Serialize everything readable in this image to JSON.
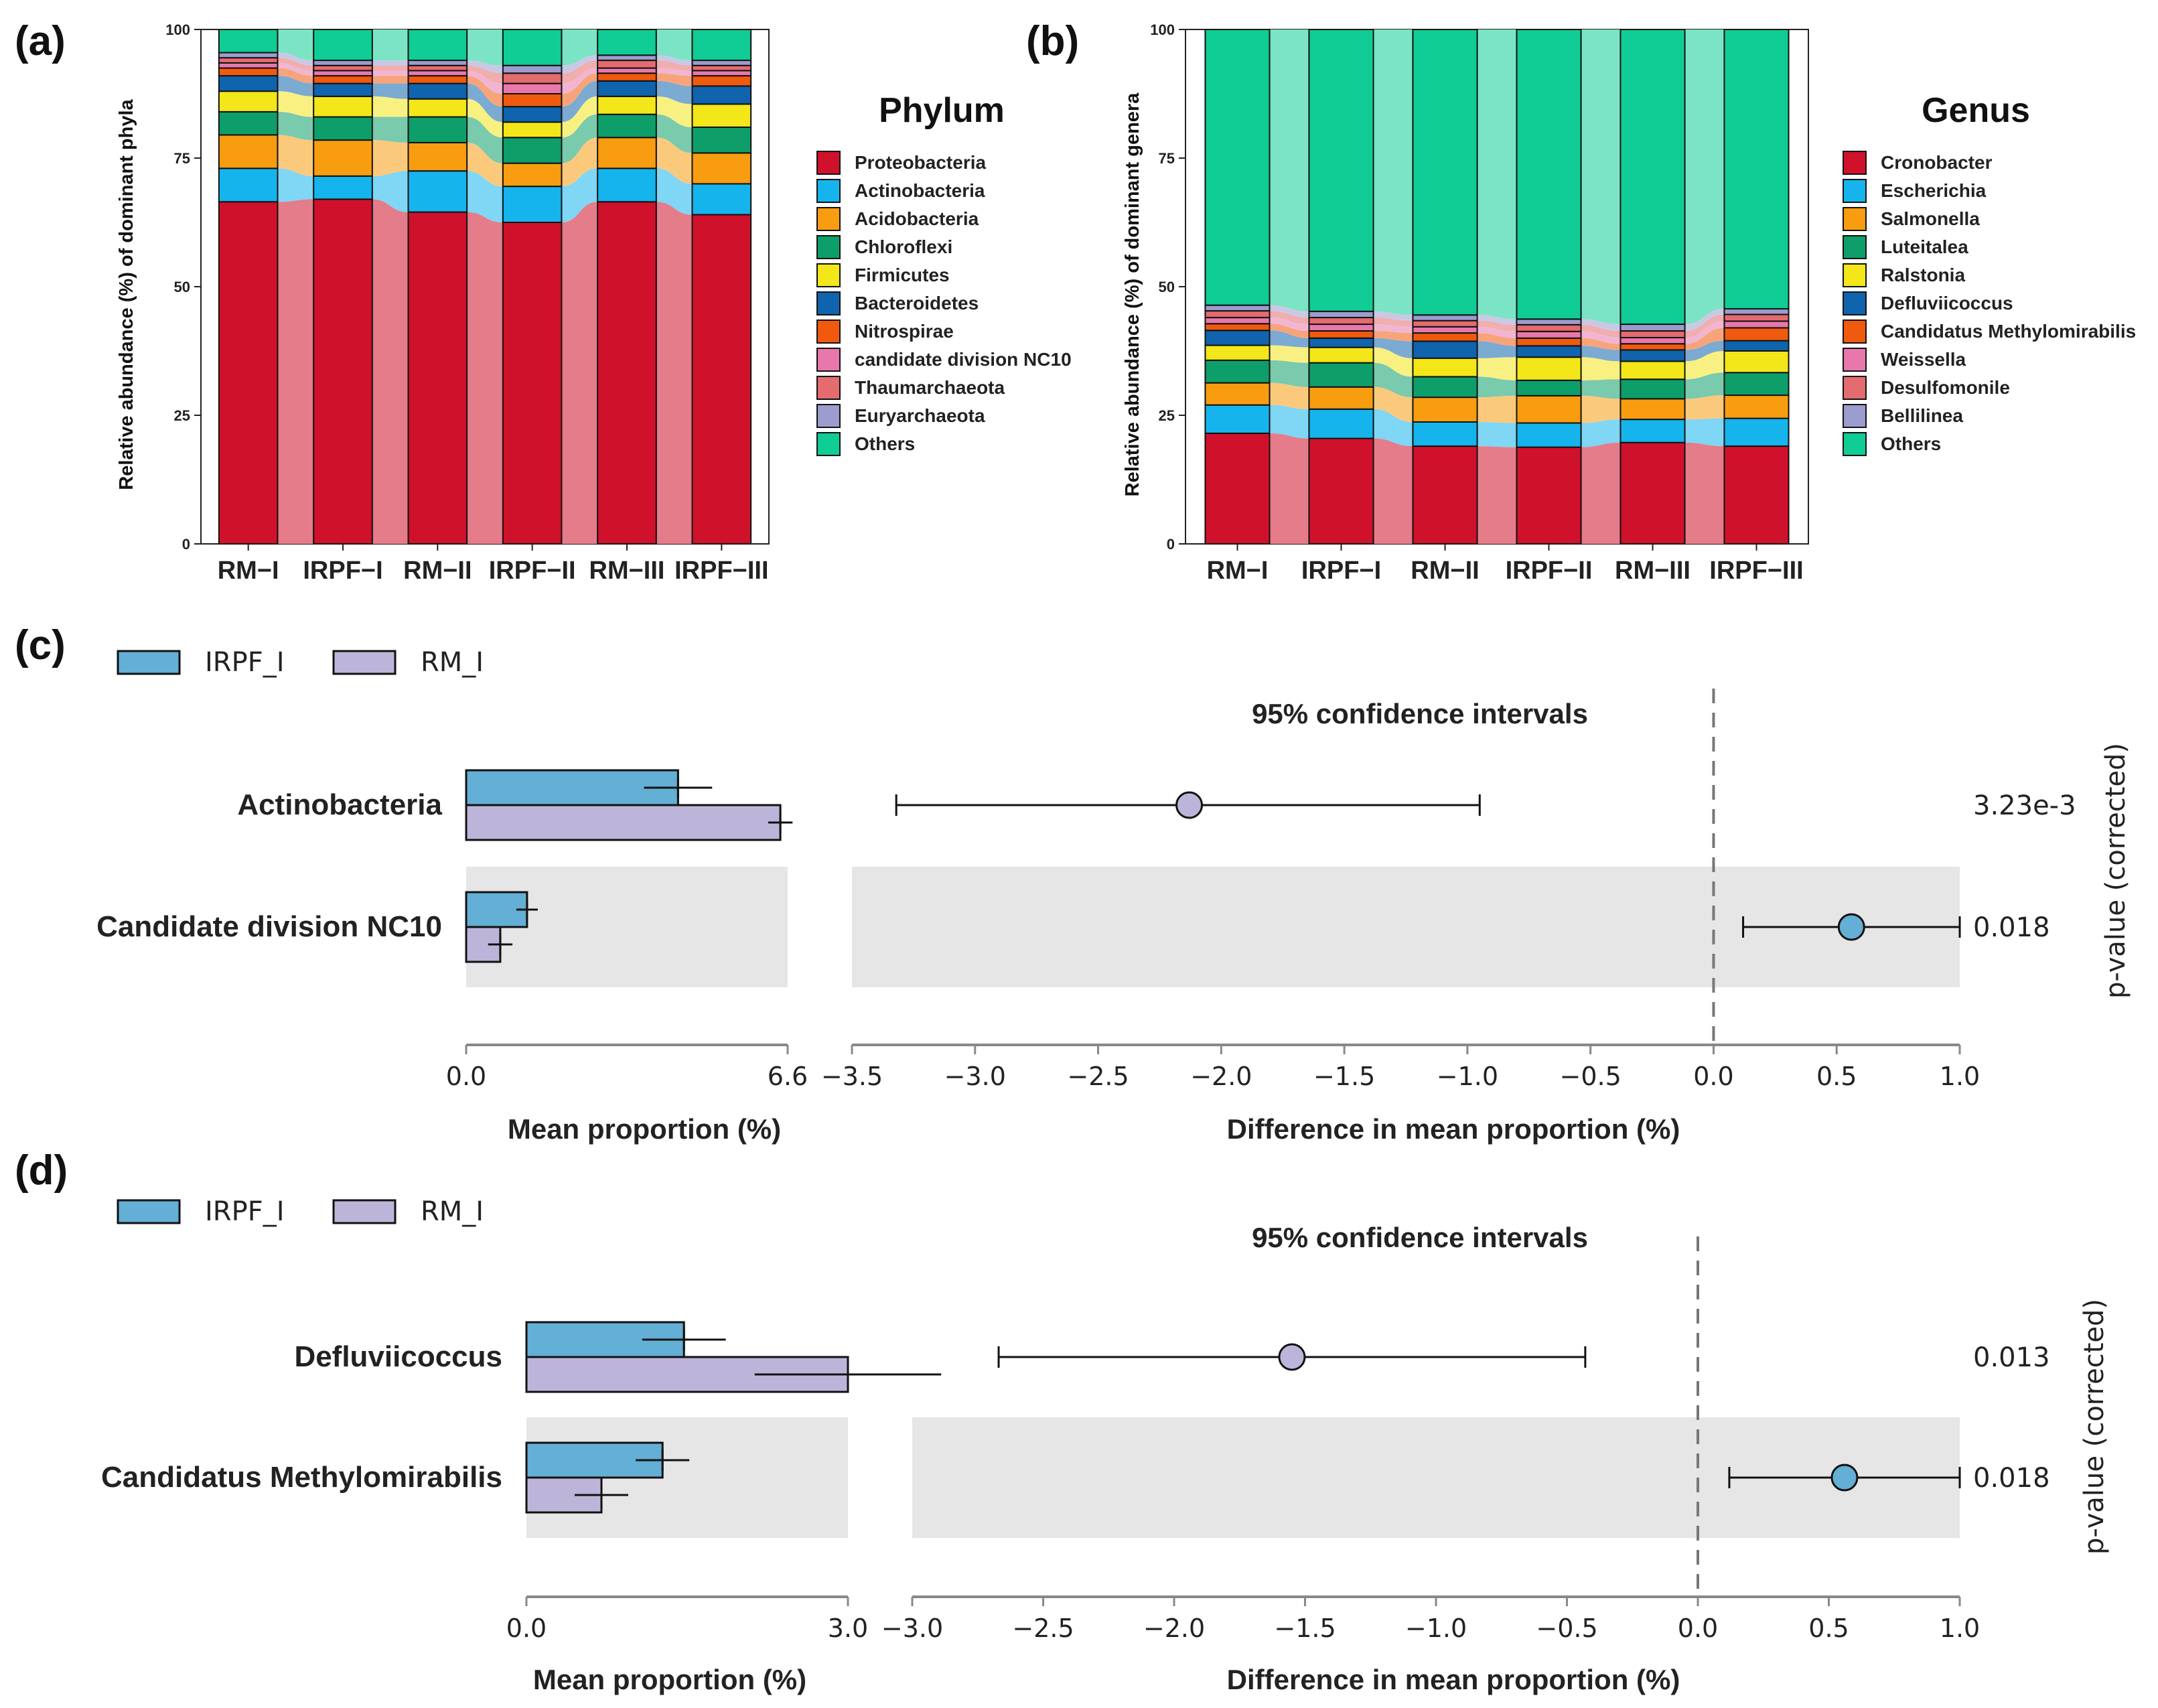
{
  "chart_data": [
    {
      "id": "a",
      "panel_label": "(a)",
      "type": "bar",
      "stacked": true,
      "title": "",
      "xlabel": "",
      "ylabel": "Relative abundance (%) of dominant phyla",
      "ylim": [
        0,
        100
      ],
      "yticks": [
        "0",
        "25",
        "50",
        "75",
        "100"
      ],
      "categories": [
        "RM−I",
        "IRPF−I",
        "RM−II",
        "IRPF−II",
        "RM−III",
        "IRPF−III"
      ],
      "legend_title": "Phylum",
      "legend_position": "right",
      "series": [
        {
          "name": "Proteobacteria",
          "color": "#d0112b",
          "values": [
            66.5,
            67.0,
            64.5,
            62.5,
            66.5,
            64.0
          ]
        },
        {
          "name": "Actinobacteria",
          "color": "#16b4ec",
          "values": [
            6.5,
            4.5,
            8.0,
            7.0,
            6.5,
            6.0
          ]
        },
        {
          "name": "Acidobacteria",
          "color": "#f89c10",
          "values": [
            6.5,
            7.0,
            5.5,
            4.5,
            6.0,
            6.0
          ]
        },
        {
          "name": "Chloroflexi",
          "color": "#0e9e6a",
          "values": [
            4.5,
            4.5,
            5.0,
            5.0,
            4.5,
            5.0
          ]
        },
        {
          "name": "Firmicutes",
          "color": "#f3e619",
          "values": [
            4.0,
            4.0,
            3.5,
            3.0,
            3.5,
            4.5
          ]
        },
        {
          "name": "Bacteroidetes",
          "color": "#0f64ad",
          "values": [
            3.0,
            2.5,
            3.0,
            3.0,
            3.0,
            3.5
          ]
        },
        {
          "name": "Nitrospirae",
          "color": "#f05a0f",
          "values": [
            1.5,
            1.5,
            1.5,
            2.5,
            1.5,
            2.0
          ]
        },
        {
          "name": "candidate division NC10",
          "color": "#e878ab",
          "values": [
            1.0,
            1.0,
            1.0,
            2.0,
            1.0,
            1.0
          ]
        },
        {
          "name": "Thaumarchaeota",
          "color": "#e46b6e",
          "values": [
            1.0,
            1.0,
            1.0,
            2.0,
            1.5,
            1.0
          ]
        },
        {
          "name": "Euryarchaeota",
          "color": "#9c9ccf",
          "values": [
            1.0,
            1.0,
            1.0,
            1.5,
            1.0,
            1.0
          ]
        },
        {
          "name": "Others",
          "color": "#0fcd94",
          "values": [
            4.5,
            6.0,
            6.0,
            7.0,
            5.0,
            6.0
          ]
        }
      ]
    },
    {
      "id": "b",
      "panel_label": "(b)",
      "type": "bar",
      "stacked": true,
      "title": "",
      "xlabel": "",
      "ylabel": "Relative abundance (%) of dominant genera",
      "ylim": [
        0,
        100
      ],
      "yticks": [
        "0",
        "25",
        "50",
        "75",
        "100"
      ],
      "categories": [
        "RM−I",
        "IRPF−I",
        "RM−II",
        "IRPF−II",
        "RM−III",
        "IRPF−III"
      ],
      "legend_title": "Genus",
      "legend_position": "right",
      "series": [
        {
          "name": "Cronobacter",
          "color": "#d0112b",
          "values": [
            21.5,
            20.5,
            19.0,
            18.8,
            19.7,
            19.0
          ]
        },
        {
          "name": "Escherichia",
          "color": "#16b4ec",
          "values": [
            5.5,
            5.7,
            4.7,
            4.7,
            4.5,
            5.4
          ]
        },
        {
          "name": "Salmonella",
          "color": "#f89c10",
          "values": [
            4.3,
            4.3,
            4.8,
            5.3,
            4.0,
            4.5
          ]
        },
        {
          "name": "Luteitalea",
          "color": "#0e9e6a",
          "values": [
            4.4,
            4.7,
            4.0,
            3.0,
            3.8,
            4.4
          ]
        },
        {
          "name": "Ralstonia",
          "color": "#f3e619",
          "values": [
            2.9,
            3.0,
            3.6,
            4.5,
            3.5,
            4.2
          ]
        },
        {
          "name": "Defluviicoccus",
          "color": "#0f64ad",
          "values": [
            2.9,
            1.8,
            3.3,
            2.2,
            2.2,
            2.0
          ]
        },
        {
          "name": "Candidatus Methylomirabilis",
          "color": "#f05a0f",
          "values": [
            1.3,
            1.4,
            1.6,
            1.5,
            1.2,
            2.5
          ]
        },
        {
          "name": "Weissella",
          "color": "#e878ab",
          "values": [
            1.2,
            1.3,
            1.2,
            1.3,
            1.2,
            1.3
          ]
        },
        {
          "name": "Desulfomonile",
          "color": "#e46b6e",
          "values": [
            1.3,
            1.3,
            1.2,
            1.3,
            1.3,
            1.3
          ]
        },
        {
          "name": "Bellilinea",
          "color": "#9c9ccf",
          "values": [
            1.1,
            1.2,
            1.1,
            1.1,
            1.3,
            1.1
          ]
        },
        {
          "name": "Others",
          "color": "#0fcd94",
          "values": [
            53.6,
            54.8,
            55.5,
            56.3,
            57.3,
            54.3
          ]
        }
      ]
    },
    {
      "id": "c",
      "panel_label": "(c)",
      "type": "bar",
      "subtype": "extended error bar",
      "legend": [
        {
          "name": "IRPF_I",
          "color": "#63afd5"
        },
        {
          "name": "RM_I",
          "color": "#bdb5d9"
        }
      ],
      "categories": [
        "Actinobacteria",
        "Candidate division NC10"
      ],
      "mean_proportion": {
        "xlabel": "Mean proportion (%)",
        "xlim": [
          0,
          6.6
        ],
        "xticks": [
          "0.0",
          "6.6"
        ],
        "series": [
          {
            "name": "IRPF_I",
            "values": [
              4.35,
              1.25
            ],
            "errors": [
              0.7,
              0.22
            ]
          },
          {
            "name": "RM_I",
            "values": [
              6.45,
              0.7
            ],
            "errors": [
              0.25,
              0.25
            ]
          }
        ]
      },
      "difference": {
        "title": "95% confidence intervals",
        "xlabel": "Difference in mean proportion (%)",
        "xlim": [
          -3.5,
          1.0
        ],
        "xticks": [
          "−3.5",
          "−3.0",
          "−2.5",
          "−2.0",
          "−1.5",
          "−1.0",
          "−0.5",
          "0.0",
          "0.5",
          "1.0"
        ],
        "estimates": [
          -2.13,
          0.56
        ],
        "ci_low": [
          -3.32,
          0.12
        ],
        "ci_high": [
          -0.95,
          1.0
        ]
      },
      "p_value_label": "p-value (corrected)",
      "p_values": [
        "3.23e-3",
        "0.018"
      ]
    },
    {
      "id": "d",
      "panel_label": "(d)",
      "type": "bar",
      "subtype": "extended error bar",
      "legend": [
        {
          "name": "IRPF_I",
          "color": "#63afd5"
        },
        {
          "name": "RM_I",
          "color": "#bdb5d9"
        }
      ],
      "categories": [
        "Defluviicoccus",
        "Candidatus Methylomirabilis"
      ],
      "mean_proportion": {
        "xlabel": "Mean proportion (%)",
        "xlim": [
          0,
          3.0
        ],
        "xticks": [
          "0.0",
          "3.0"
        ],
        "series": [
          {
            "name": "IRPF_I",
            "values": [
              1.47,
              1.27
            ],
            "errors": [
              0.39,
              0.25
            ]
          },
          {
            "name": "RM_I",
            "values": [
              3.0,
              0.7
            ],
            "errors": [
              0.87,
              0.25
            ]
          }
        ]
      },
      "difference": {
        "title": "95% confidence intervals",
        "xlabel": "Difference in mean proportion (%)",
        "xlim": [
          -3.0,
          1.0
        ],
        "xticks": [
          "−3.0",
          "−2.5",
          "−2.0",
          "−1.5",
          "−1.0",
          "−0.5",
          "0.0",
          "0.5",
          "1.0"
        ],
        "estimates": [
          -1.55,
          0.56
        ],
        "ci_low": [
          -2.67,
          0.12
        ],
        "ci_high": [
          -0.43,
          1.0
        ]
      },
      "p_value_label": "p-value (corrected)",
      "p_values": [
        "0.013",
        "0.018"
      ]
    }
  ]
}
